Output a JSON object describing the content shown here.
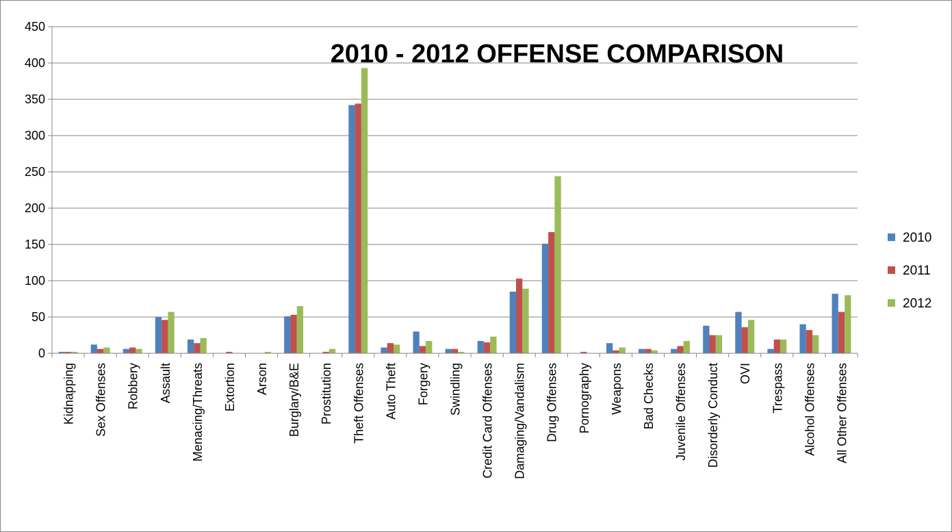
{
  "chart_data": {
    "type": "bar",
    "title": "2010 - 2012 OFFENSE COMPARISON",
    "xlabel": "",
    "ylabel": "",
    "ylim": [
      0,
      450
    ],
    "yticks": [
      0,
      50,
      100,
      150,
      200,
      250,
      300,
      350,
      400,
      450
    ],
    "grid": true,
    "legend_position": "right",
    "categories": [
      "Kidnapping",
      "Sex Offenses",
      "Robbery",
      "Assault",
      "Menacing/Threats",
      "Extortion",
      "Arson",
      "Burglary/B&E",
      "Prostitution",
      "Theft Offenses",
      "Auto Theft",
      "Forgery",
      "Swindling",
      "Credit Card Offenses",
      "Damaging/Vandalism",
      "Drug Offenses",
      "Pornography",
      "Weapons",
      "Bad Checks",
      "Juvenile Offenses",
      "Disorderly Conduct",
      "OVI",
      "Trespass",
      "Alcohol Offenses",
      "All Other Offenses"
    ],
    "series": [
      {
        "name": "2010",
        "color": "#4F81BD",
        "values": [
          2,
          12,
          6,
          50,
          19,
          0,
          0,
          51,
          0,
          342,
          8,
          30,
          6,
          17,
          85,
          151,
          0,
          14,
          6,
          6,
          38,
          57,
          6,
          40,
          82
        ]
      },
      {
        "name": "2011",
        "color": "#C0504D",
        "values": [
          2,
          6,
          8,
          46,
          14,
          2,
          0,
          53,
          2,
          344,
          14,
          10,
          6,
          15,
          103,
          167,
          2,
          4,
          6,
          10,
          25,
          36,
          19,
          32,
          57
        ]
      },
      {
        "name": "2012",
        "color": "#9BBB59",
        "values": [
          2,
          8,
          6,
          57,
          21,
          0,
          2,
          65,
          6,
          393,
          12,
          17,
          2,
          23,
          89,
          244,
          0,
          8,
          4,
          17,
          25,
          46,
          19,
          25,
          80
        ]
      }
    ]
  }
}
